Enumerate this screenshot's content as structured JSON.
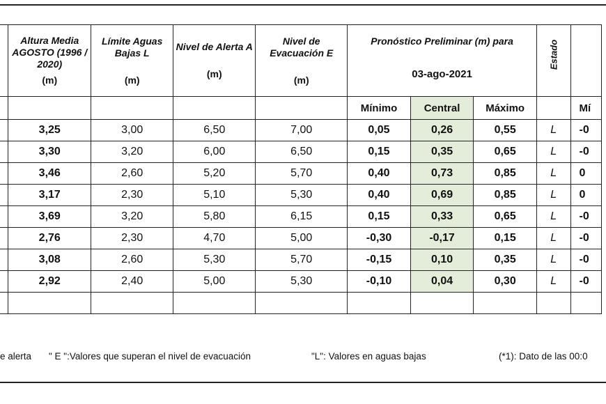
{
  "headers": {
    "altura": "Altura Media AGOSTO (1996 / 2020)",
    "limite": "Límite Aguas Bajas L",
    "alerta": "Nivel de Alerta A",
    "evacuacion": "Nivel de Evacuación E",
    "pronostico": "Pronóstico Preliminar (m) para",
    "fecha": "03-ago-2021",
    "estado": "Estado",
    "unit": "(m)"
  },
  "subheaders": {
    "minimo": "Mínimo",
    "central": "Central",
    "maximo": "Máximo",
    "next": "Mí"
  },
  "rows": [
    {
      "altura": "3,25",
      "limite": "3,00",
      "alerta": "6,50",
      "evac": "7,00",
      "min": "0,05",
      "central": "0,26",
      "max": "0,55",
      "estado": "L",
      "next": "-0"
    },
    {
      "altura": "3,30",
      "limite": "3,20",
      "alerta": "6,00",
      "evac": "6,50",
      "min": "0,15",
      "central": "0,35",
      "max": "0,65",
      "estado": "L",
      "next": "-0"
    },
    {
      "altura": "3,46",
      "limite": "2,60",
      "alerta": "5,20",
      "evac": "5,70",
      "min": "0,40",
      "central": "0,73",
      "max": "0,85",
      "estado": "L",
      "next": "0"
    },
    {
      "altura": "3,17",
      "limite": "2,30",
      "alerta": "5,10",
      "evac": "5,30",
      "min": "0,40",
      "central": "0,69",
      "max": "0,85",
      "estado": "L",
      "next": "0"
    },
    {
      "altura": "3,69",
      "limite": "3,20",
      "alerta": "5,80",
      "evac": "6,15",
      "min": "0,15",
      "central": "0,33",
      "max": "0,65",
      "estado": "L",
      "next": "-0"
    },
    {
      "altura": "2,76",
      "limite": "2,30",
      "alerta": "4,70",
      "evac": "5,00",
      "min": "-0,30",
      "central": "-0,17",
      "max": "0,15",
      "estado": "L",
      "next": "-0"
    },
    {
      "altura": "3,08",
      "limite": "2,60",
      "alerta": "5,30",
      "evac": "5,70",
      "min": "-0,15",
      "central": "0,10",
      "max": "0,35",
      "estado": "L",
      "next": "-0"
    },
    {
      "altura": "2,92",
      "limite": "2,40",
      "alerta": "5,00",
      "evac": "5,30",
      "min": "-0,10",
      "central": "0,04",
      "max": "0,30",
      "estado": "L",
      "next": "-0"
    }
  ],
  "footer": {
    "alerta": "e alerta",
    "evacuacion": "\" E \":Valores que superan el nivel de evacuación",
    "bajas": "\"L\": Valores en aguas bajas",
    "nota": "(*1): Dato de las 00:0"
  }
}
